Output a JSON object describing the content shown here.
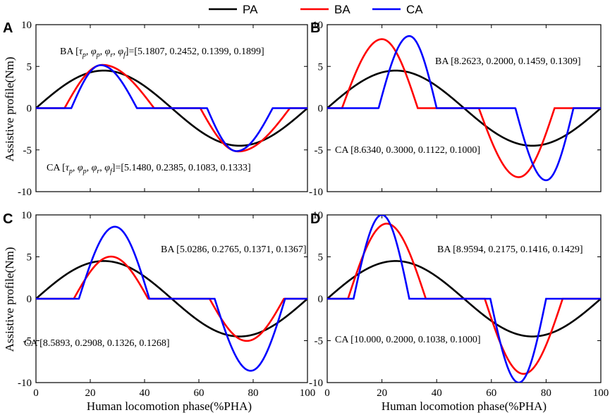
{
  "legend": {
    "items": [
      {
        "name": "PA",
        "color": "#000000"
      },
      {
        "name": "BA",
        "color": "#ff0000"
      },
      {
        "name": "CA",
        "color": "#0000ff"
      }
    ]
  },
  "axes": {
    "xlabel": "Human locomotion phase(%PHA)",
    "ylabel": "Assistive profile(Nm)",
    "xlim": [
      0,
      100
    ],
    "ylim": [
      -10,
      10
    ],
    "xticks": [
      "0",
      "20",
      "40",
      "60",
      "80",
      "100"
    ],
    "yticks": [
      "10",
      "5",
      "0",
      "-5",
      "-10"
    ]
  },
  "chart_data": [
    {
      "type": "line",
      "panel": "A",
      "pa_peak": 4.5,
      "series": [
        {
          "name": "BA",
          "tau_p": 5.1807,
          "phi_p": 0.2452,
          "phi_r": 0.1399,
          "phi_f": 0.1899
        },
        {
          "name": "CA",
          "tau_p": 5.148,
          "phi_p": 0.2385,
          "phi_r": 0.1083,
          "phi_f": 0.1333
        }
      ],
      "annotations": {
        "ba_prefix": "BA  [",
        "sym_tau": "τ",
        "sub_p": "p",
        "sym_phi": "φ",
        "sub_r": "r",
        "sub_f": "f",
        "comma": ", ",
        "close_eq": "]=",
        "ba_values": "[5.1807, 0.2452, 0.1399, 0.1899]",
        "ca_prefix": "CA  [",
        "ca_values": "[5.1480, 0.2385, 0.1083, 0.1333]"
      }
    },
    {
      "type": "line",
      "panel": "B",
      "pa_peak": 4.5,
      "series": [
        {
          "name": "BA",
          "tau_p": 8.2623,
          "phi_p": 0.2,
          "phi_r": 0.1459,
          "phi_f": 0.1309
        },
        {
          "name": "CA",
          "tau_p": 8.634,
          "phi_p": 0.3,
          "phi_r": 0.1122,
          "phi_f": 0.1
        }
      ],
      "annotations": {
        "ba_text": "BA  [8.2623, 0.2000, 0.1459, 0.1309]",
        "ca_text": "CA  [8.6340, 0.3000, 0.1122, 0.1000]"
      }
    },
    {
      "type": "line",
      "panel": "C",
      "pa_peak": 4.5,
      "series": [
        {
          "name": "BA",
          "tau_p": 5.0286,
          "phi_p": 0.2765,
          "phi_r": 0.1371,
          "phi_f": 0.1367
        },
        {
          "name": "CA",
          "tau_p": 8.5893,
          "phi_p": 0.2908,
          "phi_r": 0.1326,
          "phi_f": 0.1268
        }
      ],
      "annotations": {
        "ba_text": "BA  [5.0286, 0.2765, 0.1371, 0.1367]",
        "ca_text": "CA  [8.5893, 0.2908, 0.1326, 0.1268]"
      }
    },
    {
      "type": "line",
      "panel": "D",
      "pa_peak": 4.5,
      "series": [
        {
          "name": "BA",
          "tau_p": 8.9594,
          "phi_p": 0.2175,
          "phi_r": 0.1416,
          "phi_f": 0.1429
        },
        {
          "name": "CA",
          "tau_p": 10.0,
          "phi_p": 0.2,
          "phi_r": 0.1038,
          "phi_f": 0.1
        }
      ],
      "annotations": {
        "ba_text": "BA  [8.9594, 0.2175, 0.1416, 0.1429]",
        "ca_text": "CA  [10.000, 0.2000, 0.1038, 0.1000]"
      }
    }
  ]
}
